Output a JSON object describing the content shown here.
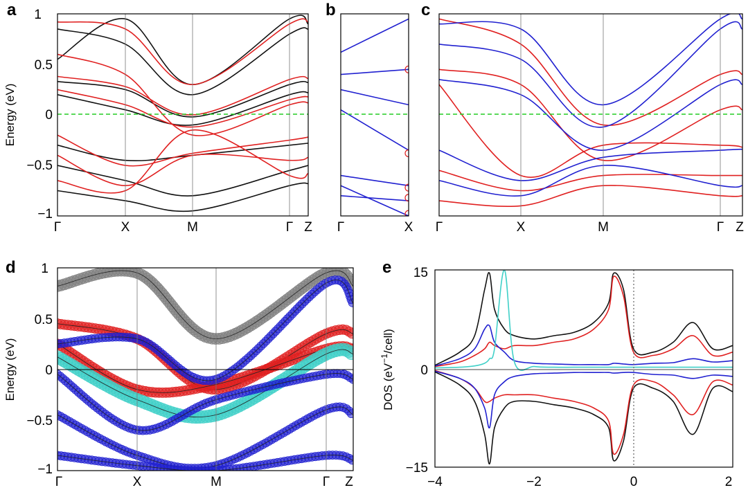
{
  "panels": {
    "a": {
      "label": "a",
      "ylabel": "Energy (eV)",
      "ylim": [
        -1,
        1
      ],
      "yticks": [
        "1",
        "0.5",
        "0",
        "−0.5",
        "−1"
      ],
      "kpoints": [
        "Γ",
        "X",
        "M",
        "Γ",
        "Z"
      ]
    },
    "b": {
      "label": "b",
      "ylim": [
        -1,
        1
      ],
      "kpoints": [
        "Γ",
        "X"
      ]
    },
    "c": {
      "label": "c",
      "ylim": [
        -1,
        1
      ],
      "kpoints": [
        "Γ",
        "X",
        "M",
        "Γ",
        "Z"
      ]
    },
    "d": {
      "label": "d",
      "ylabel": "Energy (eV)",
      "ylim": [
        -1,
        1
      ],
      "yticks": [
        "1",
        "0.5",
        "0",
        "−0.5",
        "−1"
      ],
      "kpoints": [
        "Γ",
        "X",
        "M",
        "Γ",
        "Z"
      ]
    },
    "e": {
      "label": "e",
      "ylabel_main": "DOS (eV",
      "ylabel_sup": "−1",
      "ylabel_tail": "/cell)",
      "yticks": [
        "15",
        "0",
        "−15"
      ],
      "xticks": [
        "−4",
        "−2",
        "0",
        "2"
      ]
    }
  },
  "colors": {
    "red": "#e02020",
    "black": "#111111",
    "blue": "#2020d0",
    "cyan": "#40d0c8",
    "gray": "#808080",
    "fermi": "#22cc22"
  },
  "chart_data": [
    {
      "type": "line",
      "panel": "a",
      "title": "",
      "xlabel": "",
      "ylabel": "Energy (eV)",
      "ylim": [
        -1,
        1
      ],
      "x": [
        0,
        1,
        2,
        3,
        4
      ],
      "xtick_labels": [
        "Γ",
        "X",
        "M",
        "Γ",
        "Z"
      ],
      "series": [
        {
          "name": "black",
          "color": "black",
          "values": [
            [
              0.33,
              0.25,
              -0.02,
              0.3,
              0.32
            ],
            [
              0.2,
              0.05,
              -0.1,
              0.2,
              0.22
            ],
            [
              -0.3,
              -0.45,
              -0.4,
              -0.3,
              -0.28
            ],
            [
              -0.5,
              -0.65,
              -0.8,
              -0.55,
              -0.5
            ],
            [
              0.85,
              0.7,
              0.2,
              0.8,
              0.85
            ],
            [
              -0.75,
              -0.85,
              -0.95,
              -0.7,
              -0.68
            ],
            [
              0.55,
              0.95,
              0.3,
              0.95,
              0.9
            ]
          ]
        },
        {
          "name": "red",
          "color": "red",
          "values": [
            [
              0.38,
              0.28,
              0.0,
              0.35,
              0.36
            ],
            [
              0.25,
              0.1,
              -0.12,
              0.15,
              0.18
            ],
            [
              -0.2,
              -0.5,
              -0.38,
              -0.25,
              -0.22
            ],
            [
              -0.4,
              -0.7,
              -0.4,
              -0.45,
              -0.42
            ],
            [
              0.92,
              0.85,
              0.3,
              0.9,
              0.92
            ],
            [
              -0.65,
              -0.75,
              -0.15,
              -0.6,
              -0.58
            ],
            [
              0.6,
              0.4,
              -0.2,
              0.1,
              0.12
            ]
          ]
        }
      ]
    },
    {
      "type": "line",
      "panel": "b",
      "title": "",
      "ylim": [
        -1,
        1
      ],
      "x": [
        0,
        1
      ],
      "xtick_labels": [
        "Γ",
        "X"
      ],
      "series": [
        {
          "name": "blue",
          "color": "blue",
          "values": [
            [
              0.62,
              0.95
            ],
            [
              0.4,
              0.45
            ],
            [
              0.25,
              0.1
            ],
            [
              0.05,
              -0.35
            ],
            [
              -0.6,
              -0.7
            ],
            [
              -0.8,
              -0.85
            ],
            [
              -0.7,
              -1.0
            ]
          ]
        }
      ],
      "markers": [
        0.45,
        -0.38,
        -0.72,
        -0.82,
        -0.98
      ]
    },
    {
      "type": "line",
      "panel": "c",
      "title": "",
      "ylim": [
        -1,
        1
      ],
      "x": [
        0,
        1,
        2,
        3,
        4
      ],
      "xtick_labels": [
        "Γ",
        "X",
        "M",
        "Γ",
        "Z"
      ],
      "series": [
        {
          "name": "red",
          "color": "red",
          "values": [
            [
              0.95,
              0.7,
              -0.1,
              0.4,
              0.4
            ],
            [
              0.45,
              0.3,
              -0.45,
              0.05,
              0.05
            ],
            [
              0.3,
              -0.6,
              -0.3,
              -0.3,
              -0.32
            ],
            [
              -0.55,
              -0.75,
              -0.6,
              -0.6,
              -0.6
            ],
            [
              -0.85,
              -0.9,
              -0.7,
              -0.8,
              -0.8
            ]
          ]
        },
        {
          "name": "blue",
          "color": "blue",
          "values": [
            [
              0.7,
              0.55,
              -0.12,
              0.85,
              0.85
            ],
            [
              0.35,
              0.2,
              -0.35,
              0.3,
              0.3
            ],
            [
              -0.35,
              -0.65,
              -0.42,
              -0.35,
              -0.34
            ],
            [
              -0.65,
              -0.8,
              -0.5,
              -0.7,
              -0.7
            ],
            [
              0.9,
              0.85,
              0.1,
              0.95,
              0.95
            ]
          ]
        }
      ]
    },
    {
      "type": "scatter",
      "panel": "d",
      "title": "",
      "ylabel": "Energy (eV)",
      "ylim": [
        -1,
        1
      ],
      "x": [
        0,
        1,
        2,
        3,
        4
      ],
      "xtick_labels": [
        "Γ",
        "X",
        "M",
        "Γ",
        "Z"
      ],
      "series": [
        {
          "name": "gray",
          "color": "gray",
          "values": [
            [
              0.82,
              0.95,
              0.3,
              0.95,
              0.82
            ]
          ]
        },
        {
          "name": "red",
          "color": "red",
          "values": [
            [
              0.45,
              0.3,
              -0.2,
              0.35,
              0.35
            ],
            [
              0.25,
              -0.2,
              -0.15,
              0.2,
              0.2
            ]
          ]
        },
        {
          "name": "cyan",
          "color": "cyan",
          "values": [
            [
              0.12,
              -0.3,
              -0.45,
              0.15,
              0.15
            ]
          ]
        },
        {
          "name": "blue",
          "color": "blue",
          "values": [
            [
              0.25,
              0.3,
              -0.1,
              0.85,
              0.65
            ],
            [
              -0.05,
              -0.6,
              -0.3,
              -0.05,
              -0.1
            ],
            [
              -0.45,
              -0.85,
              -0.95,
              -0.4,
              -0.45
            ],
            [
              -0.85,
              -0.95,
              -1.0,
              -0.85,
              -0.9
            ]
          ]
        }
      ]
    },
    {
      "type": "line",
      "panel": "e",
      "title": "",
      "xlabel": "",
      "ylabel": "DOS (eV−1/cell)",
      "xlim": [
        -4,
        2
      ],
      "ylim": [
        -15,
        15
      ],
      "x": [
        -4,
        -3.5,
        -3.2,
        -3.0,
        -2.9,
        -2.8,
        -2.6,
        -2.4,
        -2.0,
        -1.6,
        -1.2,
        -0.8,
        -0.5,
        -0.4,
        -0.2,
        0,
        0.4,
        0.8,
        1.2,
        1.6,
        2
      ],
      "series": [
        {
          "name": "black",
          "color": "black",
          "values": [
            0.5,
            2.5,
            5,
            12,
            14.5,
            9,
            6,
            5,
            4.5,
            5,
            5.5,
            7,
            10,
            14.5,
            12,
            3,
            2.5,
            4,
            7,
            3,
            3.5
          ]
        },
        {
          "name": "red",
          "color": "red",
          "values": [
            0.3,
            1,
            2,
            3,
            4,
            3.5,
            3,
            3.5,
            3.5,
            4,
            4.5,
            6,
            9,
            14,
            11,
            2.5,
            2,
            3,
            5,
            2,
            2.5
          ]
        },
        {
          "name": "blue",
          "color": "blue",
          "values": [
            0.4,
            1.5,
            3,
            6,
            6.5,
            4,
            2.5,
            1.2,
            0.8,
            0.7,
            0.6,
            0.6,
            0.6,
            0.8,
            0.7,
            0.6,
            0.8,
            0.9,
            1.5,
            1,
            1.2
          ]
        },
        {
          "name": "cyan",
          "color": "cyan",
          "values": [
            0.1,
            0.2,
            0.4,
            0.8,
            1.5,
            3,
            15,
            1,
            0.3,
            0.2,
            0.2,
            0.2,
            0.2,
            0.2,
            0.2,
            0.2,
            0.2,
            0.2,
            0.2,
            0.2,
            0.2
          ]
        },
        {
          "name": "black_down",
          "color": "black",
          "values": [
            -0.5,
            -2.5,
            -5,
            -10,
            -14.5,
            -9,
            -6,
            -5,
            -5,
            -5.5,
            -6,
            -7,
            -9,
            -14,
            -11,
            -3,
            -3,
            -5,
            -10,
            -3,
            -3.5
          ]
        },
        {
          "name": "red_down",
          "color": "red",
          "values": [
            -0.3,
            -1.5,
            -3,
            -5,
            -5,
            -4.5,
            -4,
            -4,
            -4,
            -4.5,
            -5,
            -6,
            -8,
            -13,
            -10,
            -2.5,
            -2,
            -4,
            -7,
            -2,
            -2.5
          ]
        },
        {
          "name": "blue_down",
          "color": "blue",
          "values": [
            -0.4,
            -1.5,
            -3,
            -6,
            -9,
            -4,
            -2,
            -1.2,
            -0.8,
            -0.7,
            -0.6,
            -0.6,
            -0.6,
            -0.7,
            -0.6,
            -0.6,
            -0.9,
            -1,
            -1.5,
            -1,
            -1.2
          ]
        }
      ]
    }
  ]
}
